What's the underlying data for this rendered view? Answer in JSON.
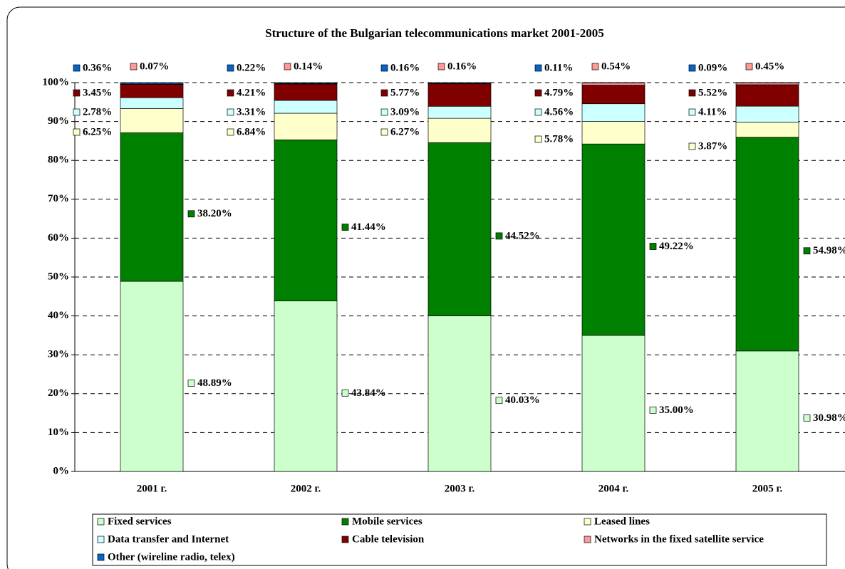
{
  "chart_data": {
    "type": "stacked_bar",
    "title": "Structure of the Bulgarian telecommunications market 2001-2005",
    "categories": [
      "2001 г.",
      "2002 г.",
      "2003 г.",
      "2004 г.",
      "2005 г."
    ],
    "series": [
      {
        "name": "Fixed services",
        "color": "#ccffcc",
        "values": [
          48.89,
          43.84,
          40.03,
          35.0,
          30.98
        ],
        "value_labels": [
          "48.89%",
          "43.84%",
          "40.03%",
          "35.00%",
          "30.98%"
        ]
      },
      {
        "name": "Mobile services",
        "color": "#008000",
        "values": [
          38.2,
          41.44,
          44.52,
          49.22,
          54.98
        ],
        "value_labels": [
          "38.20%",
          "41.44%",
          "44.52%",
          "49.22%",
          "54.98%"
        ]
      },
      {
        "name": "Leased lines",
        "color": "#ffffcc",
        "values": [
          6.25,
          6.84,
          6.27,
          5.78,
          3.87
        ],
        "value_labels": [
          "6.25%",
          "6.84%",
          "6.27%",
          "5.78%",
          "3.87%"
        ]
      },
      {
        "name": "Data transfer and Internet",
        "color": "#ccffff",
        "values": [
          2.78,
          3.31,
          3.09,
          4.56,
          4.11
        ],
        "value_labels": [
          "2.78%",
          "3.31%",
          "3.09%",
          "4.56%",
          "4.11%"
        ]
      },
      {
        "name": "Cable television",
        "color": "#800000",
        "values": [
          3.45,
          4.21,
          5.77,
          4.79,
          5.52
        ],
        "value_labels": [
          "3.45%",
          "4.21%",
          "5.77%",
          "4.79%",
          "5.52%"
        ]
      },
      {
        "name": "Networks in the fixed satellite service",
        "color": "#ff9999",
        "values": [
          0.07,
          0.14,
          0.16,
          0.54,
          0.45
        ],
        "value_labels": [
          "0.07%",
          "0.14%",
          "0.16%",
          "0.54%",
          "0.45%"
        ]
      },
      {
        "name": "Other (wireline radio, telex)",
        "color": "#0066cc",
        "values": [
          0.36,
          0.22,
          0.16,
          0.11,
          0.09
        ],
        "value_labels": [
          "0.36%",
          "0.22%",
          "0.16%",
          "0.11%",
          "0.09%"
        ]
      }
    ],
    "ylim": [
      0,
      100
    ],
    "yticks": [
      {
        "value": 0,
        "label": "0%"
      },
      {
        "value": 10,
        "label": "10%"
      },
      {
        "value": 20,
        "label": "20%"
      },
      {
        "value": 30,
        "label": "30%"
      },
      {
        "value": 40,
        "label": "40%"
      },
      {
        "value": 50,
        "label": "50%"
      },
      {
        "value": 60,
        "label": "60%"
      },
      {
        "value": 70,
        "label": "70%"
      },
      {
        "value": 80,
        "label": "80%"
      },
      {
        "value": 90,
        "label": "90%"
      },
      {
        "value": 100,
        "label": "100%"
      }
    ],
    "grid": true
  }
}
